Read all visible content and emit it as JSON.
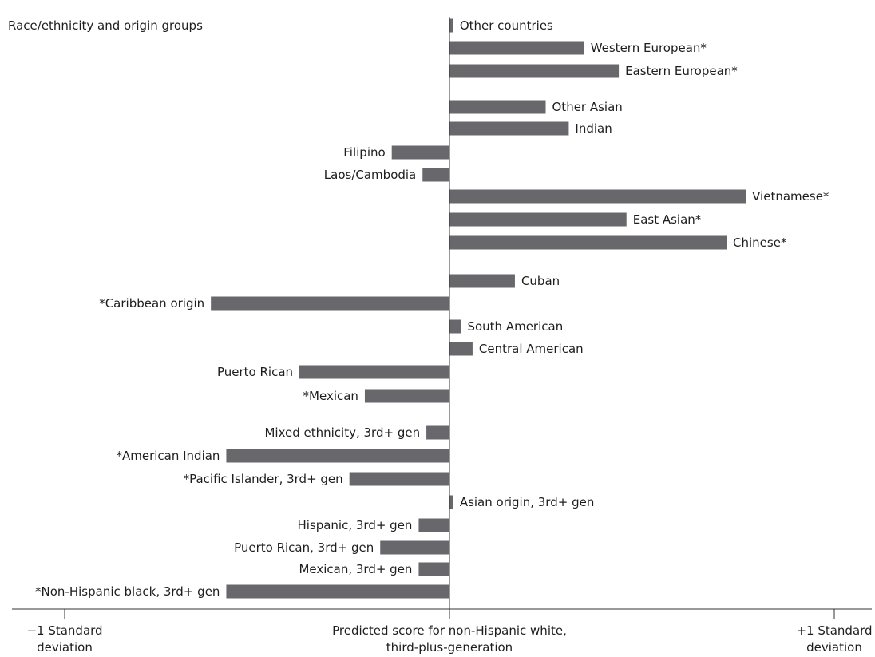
{
  "chart_data": {
    "type": "bar",
    "orientation": "horizontal",
    "title": "Race/ethnicity and origin groups",
    "xlim": [
      -1,
      1
    ],
    "bar_color": "#67676c",
    "x_ticks": [
      {
        "value": -1,
        "lines": [
          "−1 Standard",
          "deviation"
        ]
      },
      {
        "value": 0,
        "lines": [
          "Predicted score for non-Hispanic white,",
          "third-plus-generation"
        ]
      },
      {
        "value": 1,
        "lines": [
          "+1 Standard",
          "deviation"
        ]
      }
    ],
    "categories": [
      "Other countries",
      "Western European*",
      "Eastern European*",
      "Other Asian",
      "Indian",
      "Filipino",
      "Laos/Cambodia",
      "Vietnamese*",
      "East Asian*",
      "Chinese*",
      "Cuban",
      "*Caribbean origin",
      "South American",
      "Central American",
      "Puerto Rican",
      "*Mexican",
      "Mixed ethnicity, 3rd+ gen",
      "*American Indian",
      "*Pacific Islander, 3rd+ gen",
      "Asian origin, 3rd+ gen",
      "Hispanic, 3rd+ gen",
      "Puerto Rican, 3rd+ gen",
      "Mexican, 3rd+ gen",
      "*Non-Hispanic black, 3rd+ gen"
    ],
    "values": [
      0.01,
      0.35,
      0.44,
      0.25,
      0.31,
      -0.15,
      -0.07,
      0.77,
      0.46,
      0.72,
      0.17,
      -0.62,
      0.03,
      0.06,
      -0.39,
      -0.22,
      -0.06,
      -0.58,
      -0.26,
      0.01,
      -0.08,
      -0.18,
      -0.08,
      -0.58
    ]
  }
}
